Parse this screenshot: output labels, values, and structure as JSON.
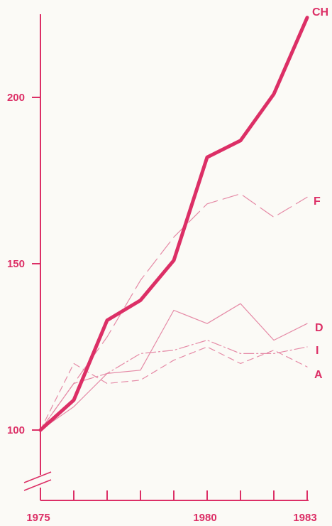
{
  "chart_data": {
    "type": "line",
    "title": "",
    "xlabel": "",
    "ylabel": "",
    "x": [
      1975,
      1976,
      1977,
      1978,
      1979,
      1980,
      1981,
      1982,
      1983
    ],
    "xlim": [
      1975,
      1983
    ],
    "ylim": [
      100,
      225
    ],
    "y_axis_break": true,
    "grid": false,
    "x_tick_labels": [
      {
        "value": 1975,
        "label": "1975"
      },
      {
        "value": 1980,
        "label": "1980"
      },
      {
        "value": 1983,
        "label": "1983"
      }
    ],
    "y_tick_labels": [
      {
        "value": 100,
        "label": "100"
      },
      {
        "value": 150,
        "label": "150"
      },
      {
        "value": 200,
        "label": "200"
      }
    ],
    "series": [
      {
        "name": "CH",
        "style": "solid-thick",
        "values": [
          100,
          109,
          133,
          139,
          151,
          182,
          187,
          201,
          224
        ]
      },
      {
        "name": "F",
        "style": "long-dash",
        "values": [
          100,
          114,
          128,
          145,
          158,
          168,
          171,
          164,
          170
        ]
      },
      {
        "name": "D",
        "style": "solid-thin",
        "values": [
          100,
          107,
          117,
          118,
          136,
          132,
          138,
          127,
          132
        ]
      },
      {
        "name": "I",
        "style": "dash-dot",
        "values": [
          100,
          114,
          117,
          123,
          124,
          127,
          123,
          123,
          125
        ]
      },
      {
        "name": "A",
        "style": "short-dash",
        "values": [
          100,
          120,
          114,
          115,
          121,
          125,
          120,
          124,
          119
        ]
      }
    ],
    "colors": {
      "axis": "#dc2f66",
      "series": "#dc2f66",
      "faint": "#e58aa6"
    }
  }
}
